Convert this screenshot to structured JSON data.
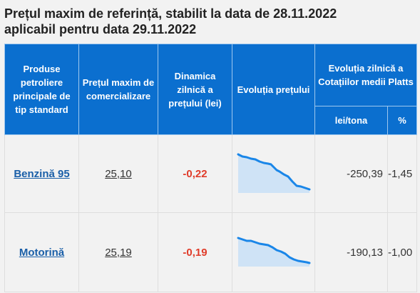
{
  "header": {
    "title_line1": "Prețul maxim de referință, stabilit la data de 28.11.2022",
    "title_line2": "aplicabil pentru data 29.11.2022"
  },
  "table": {
    "col_product": "Produse petroliere principale de tip standard",
    "col_price": "Prețul maxim de comercializare",
    "col_dynamics": "Dinamica zilnică a prețului (lei)",
    "col_evolution": "Evoluția prețului",
    "col_platts": "Evoluția zilnică a Cotațiilor medii Platts",
    "col_lei_tona": "lei/tona",
    "col_percent": "%",
    "rows": [
      {
        "product": "Benzină 95",
        "price": "25,10",
        "dynamics": "-0,22",
        "lei_tona": "-250,39",
        "percent": "-1,45"
      },
      {
        "product": "Motorină",
        "price": "25,19",
        "dynamics": "-0,19",
        "lei_tona": "-190,13",
        "percent": "-1,00"
      }
    ]
  },
  "colors": {
    "header_blue": "#0b6fcf",
    "link_blue": "#1a5fa8",
    "negative_red": "#e03c2a",
    "spark_line": "#1a86e8",
    "spark_fill": "#cfe3f6"
  }
}
